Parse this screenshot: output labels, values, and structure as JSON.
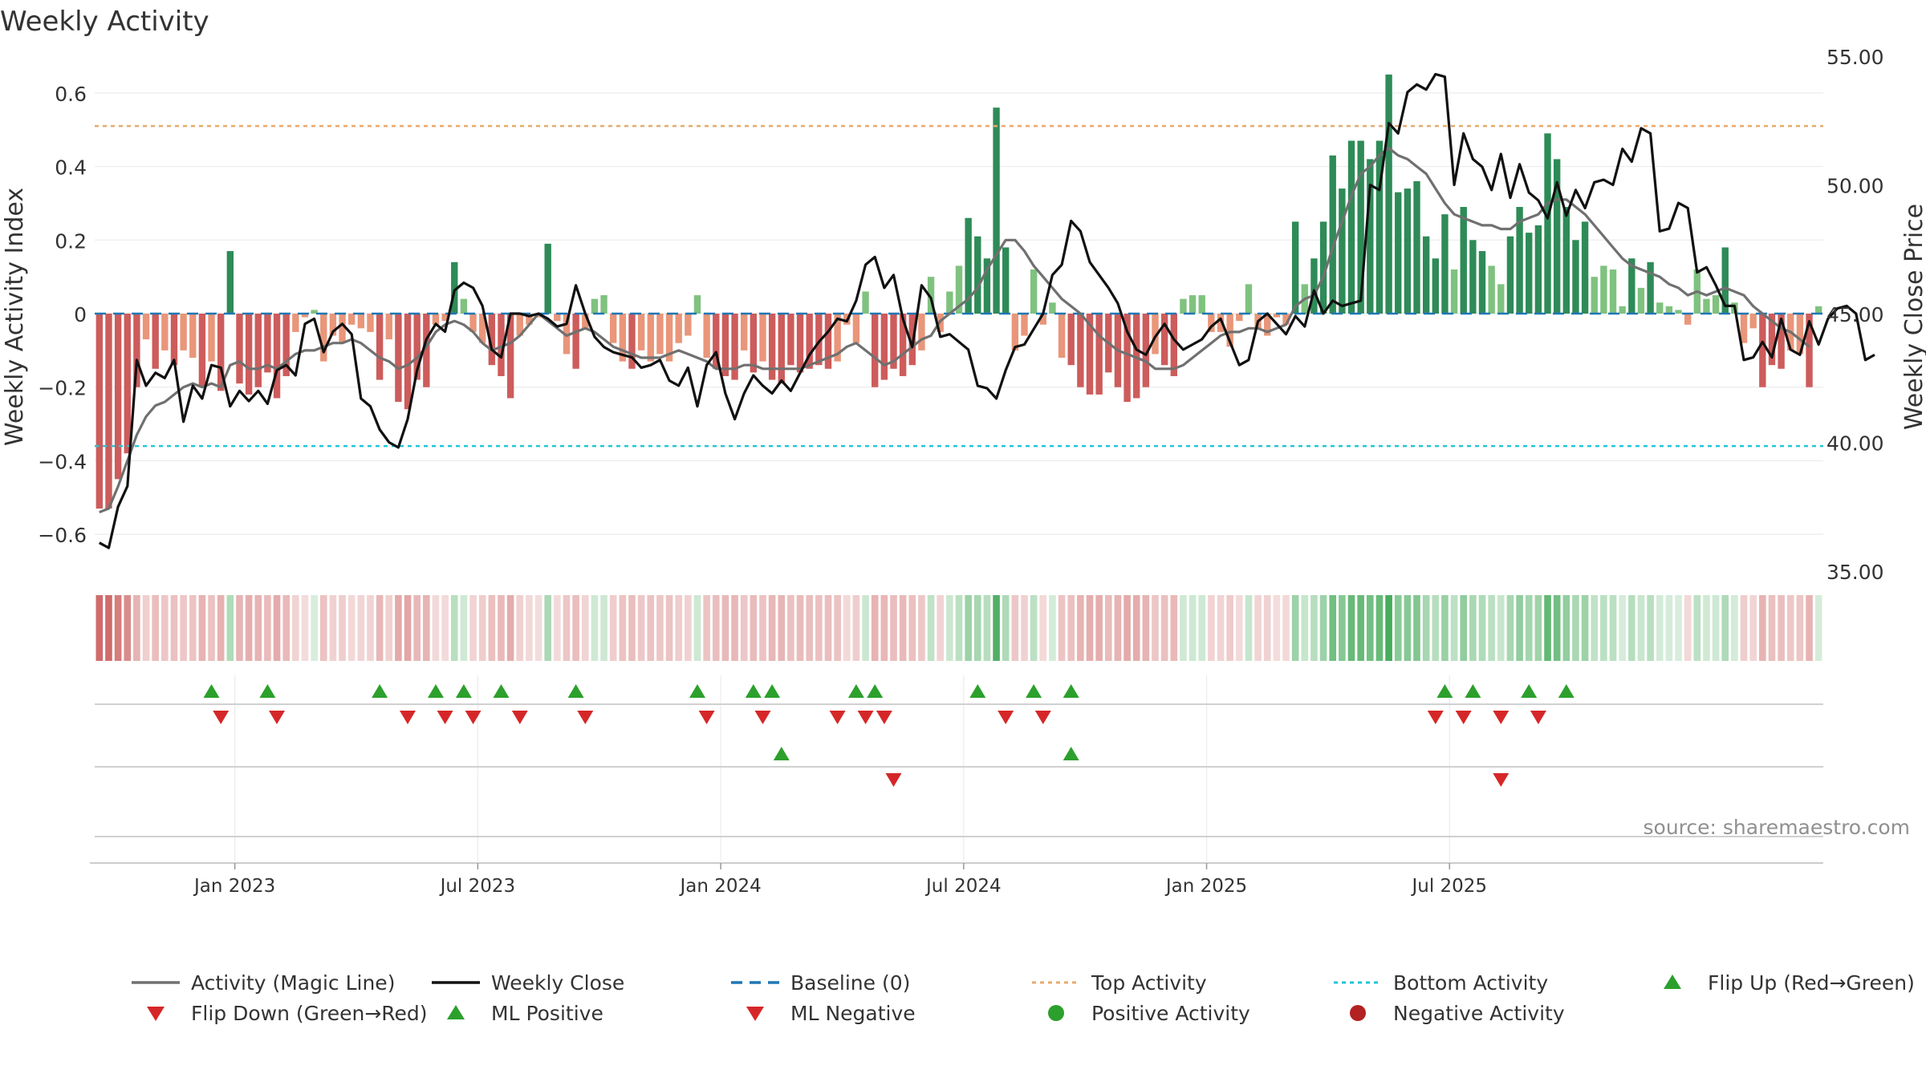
{
  "chart_data": {
    "type": "bar",
    "title": "Weekly Activity",
    "ylabel": "Weekly Activity Index",
    "y2label": "Weekly Close Price",
    "source": "source: sharemaestro.com",
    "ylim": [
      -0.7,
      0.7
    ],
    "y_ticks": [
      0.6,
      0.4,
      0.2,
      0,
      -0.2,
      -0.4,
      -0.6
    ],
    "y_tick_labels": [
      "0.6",
      "0.4",
      "0.2",
      "0",
      "−0.2",
      "−0.4",
      "−0.6"
    ],
    "y2lim": [
      35,
      55
    ],
    "y2_ticks": [
      55,
      50,
      45,
      40,
      35
    ],
    "y2_tick_labels": [
      "55.00",
      "50.00",
      "45.00",
      "40.00",
      "35.00"
    ],
    "x_tick_labels": [
      "Jan 2023",
      "Jul 2023",
      "Jan 2024",
      "Jul 2024",
      "Jan 2025",
      "Jul 2025"
    ],
    "x_tick_weeks": [
      14.5,
      40.5,
      66.5,
      92.5,
      118.5,
      144.5
    ],
    "top_activity": 0.51,
    "bottom_activity": -0.36,
    "colors": {
      "strong_pos": "#2e8b57",
      "weak_pos": "#7fc27f",
      "strong_neg": "#cd5c5c",
      "weak_neg": "#e9967a",
      "magic_line": "#707070",
      "close_line": "#111111",
      "baseline": "#1f77b4",
      "top": "#e8a96c",
      "bottom": "#22c6d8",
      "flip_up": "#2ca02c",
      "flip_down": "#d62728"
    },
    "activity": [
      -0.53,
      -0.53,
      -0.45,
      -0.38,
      -0.2,
      -0.07,
      -0.15,
      -0.1,
      -0.14,
      -0.1,
      -0.12,
      -0.2,
      -0.13,
      -0.21,
      0.17,
      -0.19,
      -0.22,
      -0.2,
      -0.16,
      -0.23,
      -0.17,
      -0.05,
      -0.01,
      0.01,
      -0.13,
      -0.06,
      -0.08,
      -0.03,
      -0.04,
      -0.05,
      -0.18,
      -0.07,
      -0.24,
      -0.26,
      -0.18,
      -0.2,
      -0.03,
      -0.02,
      0.14,
      0.04,
      -0.05,
      -0.08,
      -0.14,
      -0.17,
      -0.23,
      -0.06,
      -0.03,
      -0.01,
      0.19,
      -0.02,
      -0.11,
      -0.15,
      -0.04,
      0.04,
      0.05,
      -0.08,
      -0.13,
      -0.15,
      -0.1,
      -0.13,
      -0.11,
      -0.13,
      -0.08,
      -0.06,
      0.05,
      -0.12,
      -0.15,
      -0.17,
      -0.18,
      -0.1,
      -0.16,
      -0.13,
      -0.18,
      -0.19,
      -0.14,
      -0.16,
      -0.15,
      -0.14,
      -0.15,
      -0.13,
      -0.03,
      -0.08,
      0.06,
      -0.2,
      -0.18,
      -0.15,
      -0.17,
      -0.14,
      -0.1,
      0.1,
      -0.05,
      0.06,
      0.13,
      0.26,
      0.21,
      0.15,
      0.56,
      0.18,
      -0.1,
      -0.06,
      0.12,
      -0.03,
      0.03,
      -0.12,
      -0.14,
      -0.2,
      -0.22,
      -0.22,
      -0.16,
      -0.2,
      -0.24,
      -0.23,
      -0.2,
      -0.11,
      -0.14,
      -0.17,
      0.04,
      0.05,
      0.05,
      -0.05,
      -0.05,
      -0.09,
      -0.02,
      0.08,
      -0.04,
      -0.06,
      -0.01,
      -0.03,
      0.25,
      0.08,
      0.15,
      0.25,
      0.43,
      0.34,
      0.47,
      0.47,
      0.42,
      0.47,
      0.65,
      0.33,
      0.34,
      0.36,
      0.21,
      0.15,
      0.27,
      0.12,
      0.29,
      0.2,
      0.17,
      0.13,
      0.08,
      0.21,
      0.29,
      0.22,
      0.24,
      0.49,
      0.42,
      0.29,
      0.2,
      0.25,
      0.1,
      0.13,
      0.12,
      0.02,
      0.15,
      0.07,
      0.14,
      0.03,
      0.02,
      0.01,
      -0.03,
      0.12,
      0.04,
      0.05,
      0.18,
      0.03,
      -0.08,
      -0.04,
      -0.2,
      -0.14,
      -0.15,
      -0.1,
      -0.11,
      -0.2,
      0.02
    ],
    "magic_line": [
      -0.54,
      -0.53,
      -0.47,
      -0.4,
      -0.33,
      -0.28,
      -0.25,
      -0.24,
      -0.22,
      -0.2,
      -0.19,
      -0.2,
      -0.19,
      -0.2,
      -0.14,
      -0.13,
      -0.15,
      -0.15,
      -0.14,
      -0.15,
      -0.13,
      -0.11,
      -0.1,
      -0.1,
      -0.09,
      -0.08,
      -0.08,
      -0.07,
      -0.08,
      -0.1,
      -0.12,
      -0.13,
      -0.15,
      -0.14,
      -0.12,
      -0.09,
      -0.05,
      -0.03,
      -0.02,
      -0.03,
      -0.05,
      -0.08,
      -0.1,
      -0.09,
      -0.08,
      -0.06,
      -0.03,
      0.0,
      -0.02,
      -0.04,
      -0.06,
      -0.05,
      -0.04,
      -0.05,
      -0.07,
      -0.09,
      -0.1,
      -0.11,
      -0.12,
      -0.12,
      -0.12,
      -0.11,
      -0.1,
      -0.11,
      -0.12,
      -0.13,
      -0.15,
      -0.15,
      -0.15,
      -0.14,
      -0.14,
      -0.15,
      -0.15,
      -0.15,
      -0.15,
      -0.15,
      -0.14,
      -0.13,
      -0.12,
      -0.11,
      -0.09,
      -0.08,
      -0.1,
      -0.12,
      -0.14,
      -0.13,
      -0.11,
      -0.09,
      -0.07,
      -0.06,
      -0.02,
      0.0,
      0.02,
      0.04,
      0.07,
      0.12,
      0.16,
      0.2,
      0.2,
      0.17,
      0.13,
      0.1,
      0.07,
      0.04,
      0.02,
      0.0,
      -0.03,
      -0.06,
      -0.08,
      -0.1,
      -0.11,
      -0.12,
      -0.13,
      -0.15,
      -0.15,
      -0.15,
      -0.14,
      -0.12,
      -0.1,
      -0.08,
      -0.06,
      -0.05,
      -0.05,
      -0.04,
      -0.04,
      -0.05,
      -0.04,
      -0.03,
      0.02,
      0.04,
      0.05,
      0.1,
      0.18,
      0.25,
      0.32,
      0.38,
      0.4,
      0.43,
      0.45,
      0.43,
      0.42,
      0.4,
      0.38,
      0.34,
      0.3,
      0.27,
      0.26,
      0.25,
      0.24,
      0.24,
      0.23,
      0.23,
      0.25,
      0.26,
      0.27,
      0.3,
      0.31,
      0.31,
      0.29,
      0.27,
      0.24,
      0.21,
      0.18,
      0.15,
      0.13,
      0.12,
      0.11,
      0.1,
      0.08,
      0.07,
      0.05,
      0.06,
      0.05,
      0.06,
      0.07,
      0.06,
      0.05,
      0.02,
      0.0,
      -0.02,
      -0.04,
      -0.05,
      -0.07,
      -0.09
    ],
    "weekly_close": [
      36.1,
      35.9,
      37.5,
      38.3,
      43.2,
      42.2,
      42.7,
      42.5,
      43.2,
      40.8,
      42.2,
      41.7,
      43.0,
      42.9,
      41.4,
      42.0,
      41.6,
      42.0,
      41.5,
      42.8,
      43.0,
      42.6,
      44.6,
      44.8,
      43.5,
      44.3,
      44.6,
      44.2,
      41.7,
      41.4,
      40.5,
      40.0,
      39.8,
      40.9,
      42.8,
      44.0,
      44.6,
      44.3,
      45.9,
      46.2,
      46.0,
      45.3,
      43.6,
      43.3,
      45.0,
      45.0,
      44.9,
      45.0,
      44.8,
      44.5,
      44.6,
      46.1,
      45.0,
      44.1,
      43.7,
      43.5,
      43.4,
      43.3,
      42.9,
      43.0,
      43.2,
      42.4,
      42.2,
      42.9,
      41.4,
      43.0,
      43.5,
      41.9,
      40.9,
      41.9,
      42.6,
      42.2,
      41.9,
      42.4,
      42.0,
      42.7,
      43.4,
      43.9,
      44.3,
      44.8,
      44.7,
      45.5,
      46.9,
      47.2,
      46.0,
      46.5,
      44.8,
      43.7,
      46.1,
      45.6,
      44.1,
      44.2,
      43.9,
      43.6,
      42.2,
      42.1,
      41.7,
      42.8,
      43.7,
      43.8,
      44.4,
      45.0,
      46.5,
      46.9,
      48.6,
      48.2,
      47.0,
      46.5,
      46.0,
      45.4,
      44.3,
      43.6,
      43.4,
      44.1,
      44.6,
      44.0,
      43.6,
      43.8,
      44.0,
      44.5,
      44.8,
      43.9,
      43.0,
      43.2,
      44.7,
      45.0,
      44.6,
      44.2,
      44.9,
      44.5,
      45.9,
      45.0,
      45.5,
      45.3,
      45.4,
      45.5,
      50.0,
      49.8,
      52.4,
      52.0,
      53.6,
      53.9,
      53.7,
      54.3,
      54.2,
      50.0,
      52.0,
      51.0,
      50.7,
      49.8,
      51.2,
      49.5,
      50.8,
      49.7,
      49.4,
      48.7,
      50.1,
      48.8,
      49.8,
      49.1,
      50.1,
      50.2,
      50.0,
      51.4,
      50.9,
      52.2,
      52.0,
      48.2,
      48.3,
      49.3,
      49.1,
      46.6,
      46.8,
      46.1,
      45.3,
      45.3,
      43.2,
      43.3,
      43.9,
      43.3,
      44.8,
      43.6,
      43.4,
      44.7,
      43.8,
      44.8,
      45.2,
      45.3,
      45.0,
      43.2,
      43.4
    ],
    "flips": [
      {
        "week": 12,
        "dir": "up"
      },
      {
        "week": 13,
        "dir": "down"
      },
      {
        "week": 18,
        "dir": "up"
      },
      {
        "week": 19,
        "dir": "down"
      },
      {
        "week": 30,
        "dir": "up"
      },
      {
        "week": 33,
        "dir": "down"
      },
      {
        "week": 36,
        "dir": "up"
      },
      {
        "week": 37,
        "dir": "down"
      },
      {
        "week": 39,
        "dir": "up"
      },
      {
        "week": 40,
        "dir": "down"
      },
      {
        "week": 43,
        "dir": "up"
      },
      {
        "week": 45,
        "dir": "down"
      },
      {
        "week": 51,
        "dir": "up"
      },
      {
        "week": 52,
        "dir": "down"
      },
      {
        "week": 64,
        "dir": "up"
      },
      {
        "week": 65,
        "dir": "down"
      },
      {
        "week": 70,
        "dir": "up"
      },
      {
        "week": 71,
        "dir": "down"
      },
      {
        "week": 72,
        "dir": "up"
      },
      {
        "week": 79,
        "dir": "down"
      },
      {
        "week": 81,
        "dir": "up"
      },
      {
        "week": 82,
        "dir": "down"
      },
      {
        "week": 83,
        "dir": "up"
      },
      {
        "week": 84,
        "dir": "down"
      },
      {
        "week": 94,
        "dir": "up"
      },
      {
        "week": 97,
        "dir": "down"
      },
      {
        "week": 100,
        "dir": "up"
      },
      {
        "week": 101,
        "dir": "down"
      },
      {
        "week": 104,
        "dir": "up"
      },
      {
        "week": 143,
        "dir": "down"
      },
      {
        "week": 144,
        "dir": "up"
      },
      {
        "week": 146,
        "dir": "down"
      },
      {
        "week": 147,
        "dir": "up"
      },
      {
        "week": 150,
        "dir": "down"
      },
      {
        "week": 153,
        "dir": "up"
      },
      {
        "week": 154,
        "dir": "down"
      },
      {
        "week": 157,
        "dir": "up"
      }
    ],
    "ml_signals": [
      {
        "week": 73,
        "dir": "up"
      },
      {
        "week": 85,
        "dir": "down"
      },
      {
        "week": 104,
        "dir": "up"
      },
      {
        "week": 150,
        "dir": "down"
      }
    ],
    "legend": [
      {
        "label": "Activity (Magic Line)",
        "symbol": "line",
        "color": "#707070"
      },
      {
        "label": "Weekly Close",
        "symbol": "line",
        "color": "#111111"
      },
      {
        "label": "Baseline (0)",
        "symbol": "dashed",
        "color": "#1f77b4"
      },
      {
        "label": "Top Activity",
        "symbol": "dotted",
        "color": "#e8a96c"
      },
      {
        "label": "Bottom Activity",
        "symbol": "dotted",
        "color": "#22c6d8"
      },
      {
        "label": "Flip Up (Red→Green)",
        "symbol": "tri-up",
        "color": "#2ca02c"
      },
      {
        "label": "Flip Down (Green→Red)",
        "symbol": "tri-down",
        "color": "#d62728"
      },
      {
        "label": "ML Positive",
        "symbol": "tri-up",
        "color": "#2ca02c"
      },
      {
        "label": "ML Negative",
        "symbol": "tri-down",
        "color": "#d62728"
      },
      {
        "label": "Positive Activity",
        "symbol": "circle",
        "color": "#2ca02c"
      },
      {
        "label": "Negative Activity",
        "symbol": "circle",
        "color": "#b22222"
      }
    ]
  }
}
